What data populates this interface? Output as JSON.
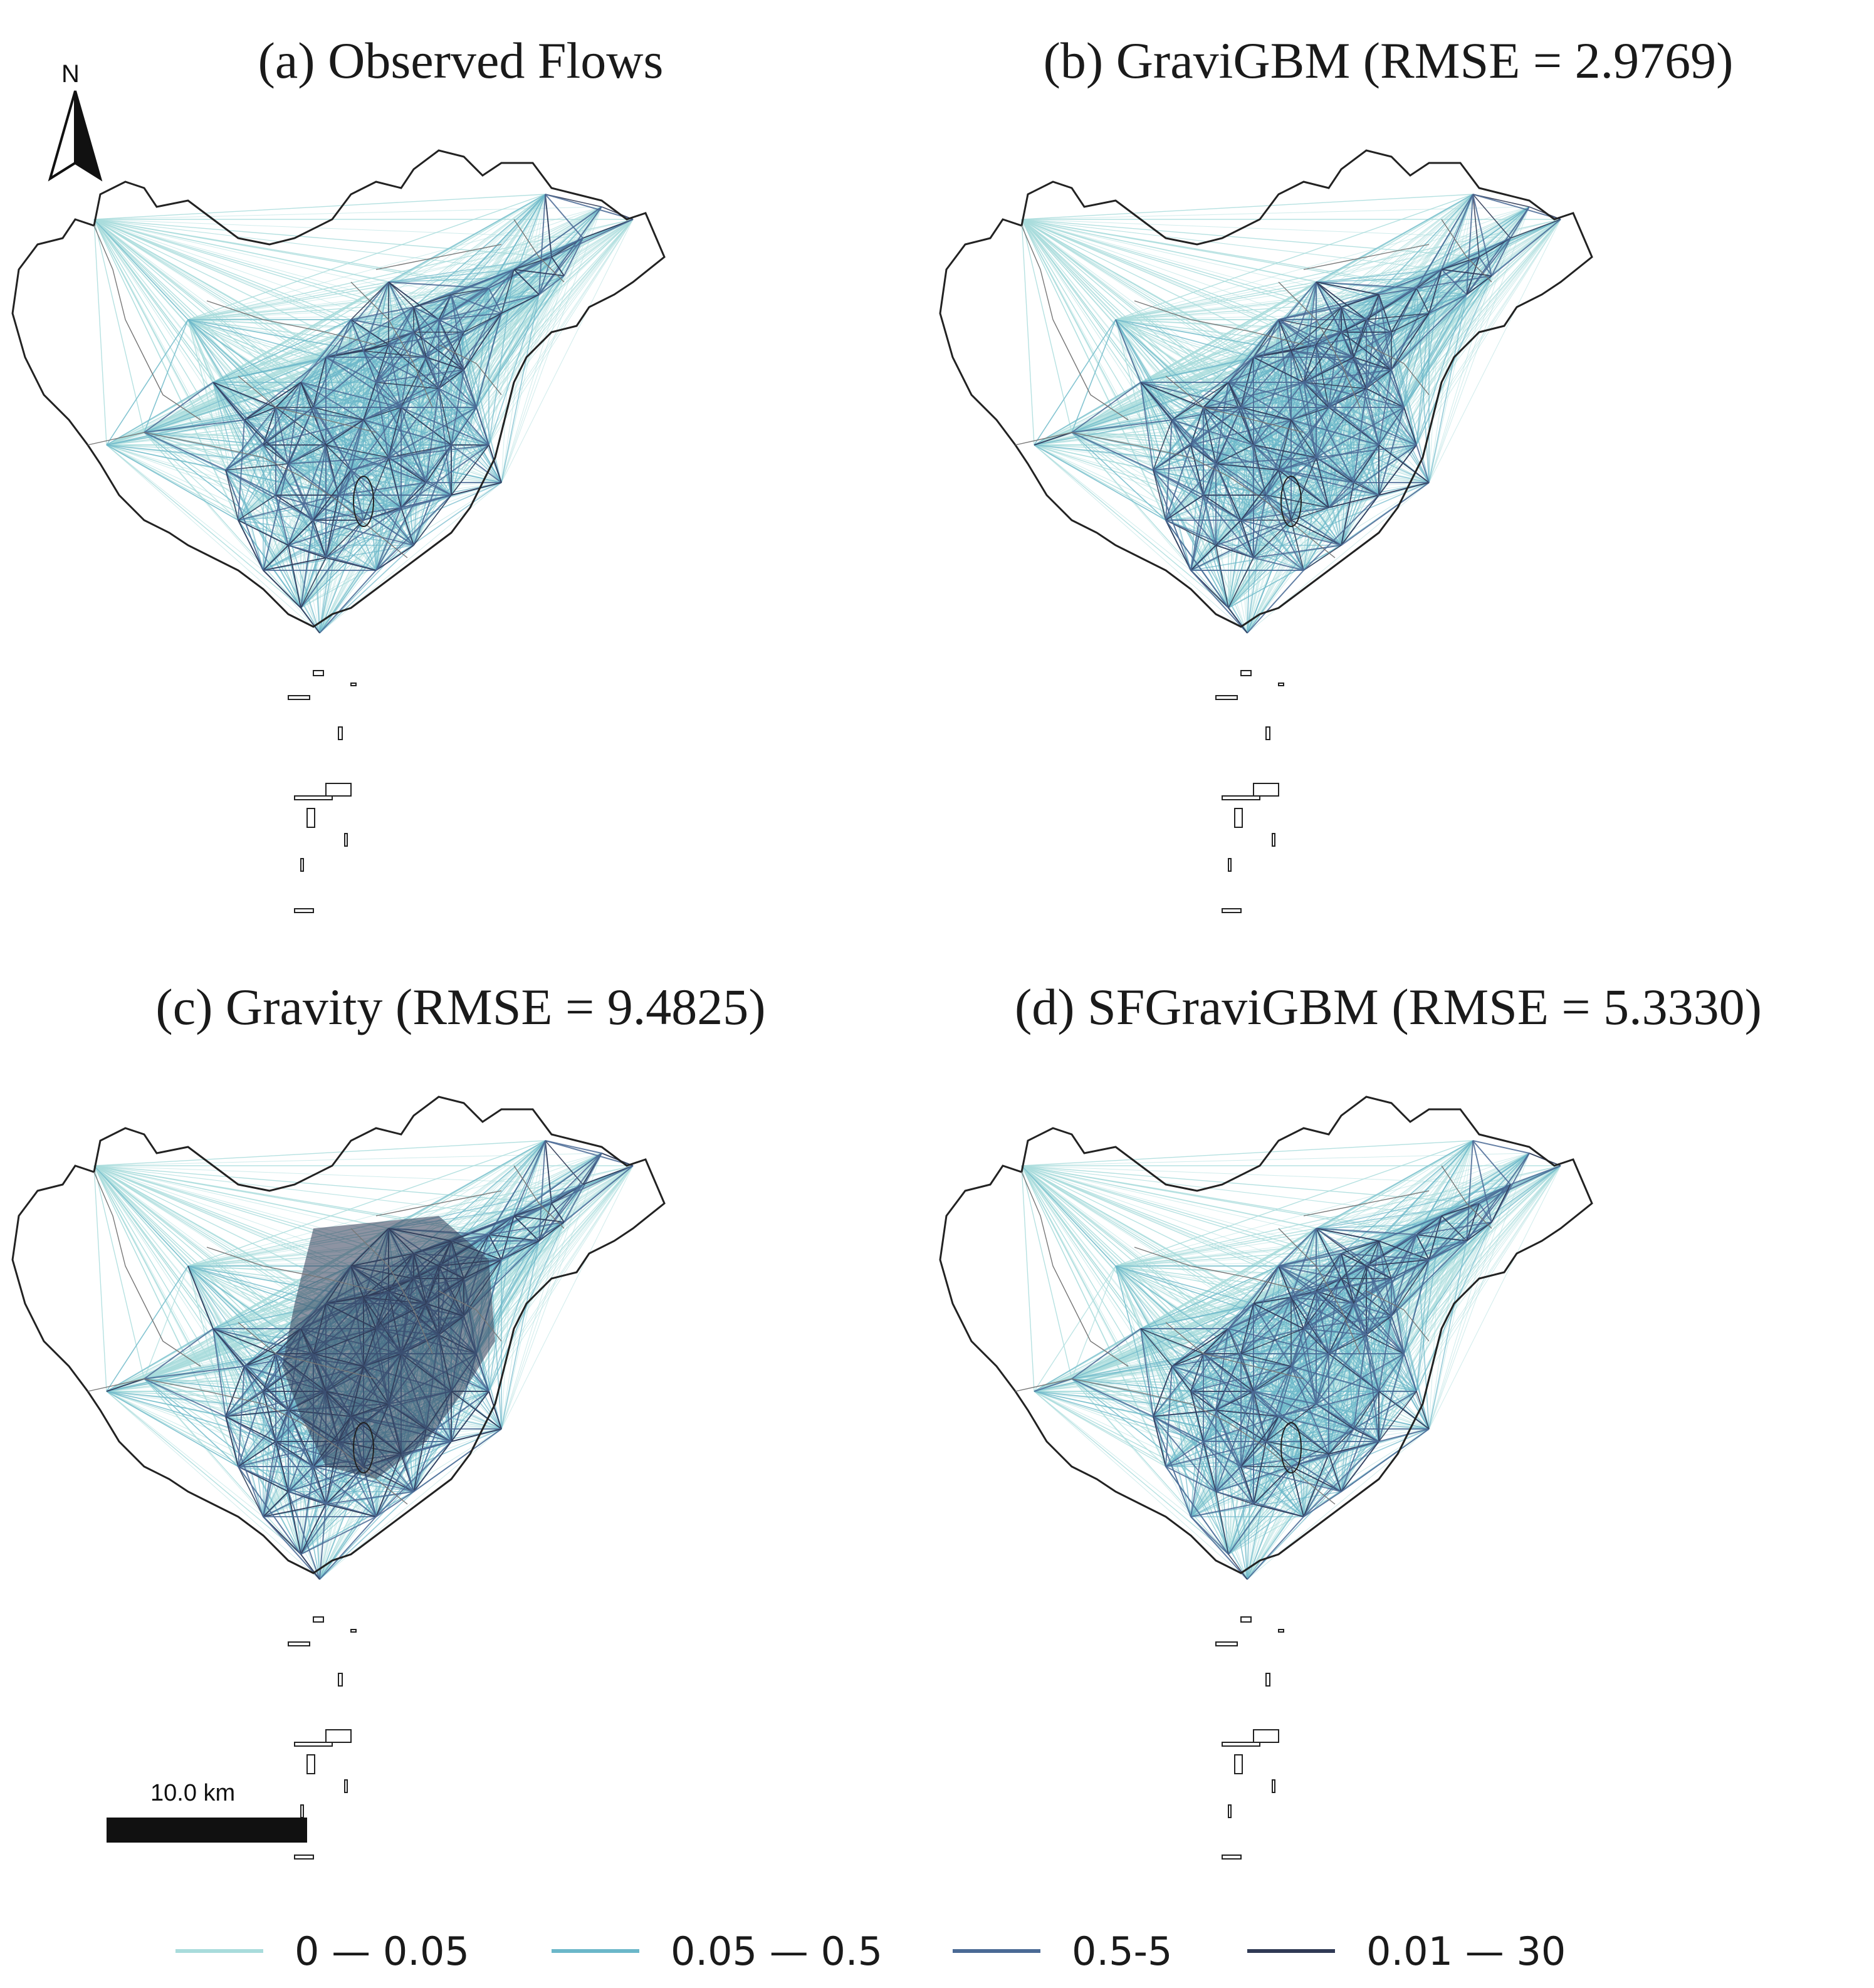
{
  "panels": [
    {
      "id": "a",
      "title": "(a) Observed Flows",
      "dark_level": 0.55
    },
    {
      "id": "b",
      "title": "(b) GraviGBM (RMSE = 2.9769)",
      "dark_level": 0.7
    },
    {
      "id": "c",
      "title": "(c) Gravity (RMSE = 9.4825)",
      "dark_level": 0.92
    },
    {
      "id": "d",
      "title": "(d) SFGraviGBM (RMSE = 5.3330)",
      "dark_level": 0.62
    }
  ],
  "north_arrow": {
    "letter": "N"
  },
  "scale_bar": {
    "label": "10.0 km"
  },
  "legend": [
    {
      "label": "0 — 0.05",
      "color": "#a9dcdc"
    },
    {
      "label": "0.05 — 0.5",
      "color": "#6bb7c9"
    },
    {
      "label": "0.5-5",
      "color": "#4a6a95"
    },
    {
      "label": "0.01 — 30",
      "color": "#303a55"
    }
  ],
  "colors": {
    "light": "#a9dcdc",
    "mid": "#6bb7c9",
    "dark": "#4a6a95",
    "darkest": "#303a55",
    "outline": "#222222"
  }
}
